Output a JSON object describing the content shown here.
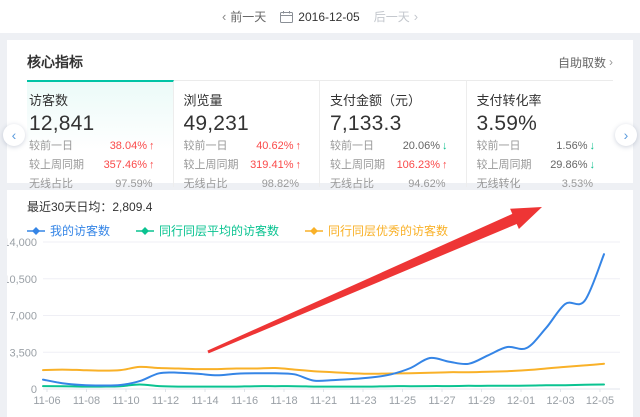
{
  "topbar": {
    "prev_label": "前一天",
    "date": "2016-12-05",
    "next_label": "后一天"
  },
  "core": {
    "title": "核心指标",
    "fetch_link": "自助取数",
    "tabs": [
      {
        "label": "访客数",
        "value": "12,841",
        "rows": [
          {
            "label": "较前一日",
            "value": "38.04%",
            "trend": "up"
          },
          {
            "label": "较上周同期",
            "value": "357.46%",
            "trend": "up"
          },
          {
            "label": "无线占比",
            "value": "97.59%",
            "trend": "none"
          }
        ]
      },
      {
        "label": "浏览量",
        "value": "49,231",
        "rows": [
          {
            "label": "较前一日",
            "value": "40.62%",
            "trend": "up"
          },
          {
            "label": "较上周同期",
            "value": "319.41%",
            "trend": "up"
          },
          {
            "label": "无线占比",
            "value": "98.82%",
            "trend": "none"
          }
        ]
      },
      {
        "label": "支付金额（元）",
        "value": "7,133.3",
        "rows": [
          {
            "label": "较前一日",
            "value": "20.06%",
            "trend": "down"
          },
          {
            "label": "较上周同期",
            "value": "106.23%",
            "trend": "up"
          },
          {
            "label": "无线占比",
            "value": "94.62%",
            "trend": "none"
          }
        ]
      },
      {
        "label": "支付转化率",
        "value": "3.59%",
        "rows": [
          {
            "label": "较前一日",
            "value": "1.56%",
            "trend": "down"
          },
          {
            "label": "较上周同期",
            "value": "29.86%",
            "trend": "down"
          },
          {
            "label": "无线转化",
            "value": "3.53%",
            "trend": "none"
          }
        ]
      }
    ]
  },
  "chart_data": {
    "type": "line",
    "title": "最近30天日均：2,809.4",
    "x": [
      "11-06",
      "11-07",
      "11-08",
      "11-09",
      "11-10",
      "11-11",
      "11-12",
      "11-13",
      "11-14",
      "11-15",
      "11-16",
      "11-17",
      "11-18",
      "11-19",
      "11-20",
      "11-21",
      "11-22",
      "11-23",
      "11-24",
      "11-25",
      "11-26",
      "11-27",
      "11-28",
      "11-29",
      "11-30",
      "12-01",
      "12-02",
      "12-03",
      "12-04",
      "12-05"
    ],
    "x_tick_labels": [
      "11-06",
      "11-08",
      "11-10",
      "11-12",
      "11-14",
      "11-16",
      "11-18",
      "11-21",
      "11-23",
      "11-25",
      "11-27",
      "11-29",
      "12-01",
      "12-03",
      "12-05"
    ],
    "ylim": [
      0,
      14000
    ],
    "y_ticks": [
      {
        "value": 0,
        "label": "0"
      },
      {
        "value": 3500,
        "label": "3,500"
      },
      {
        "value": 7000,
        "label": "7,000"
      },
      {
        "value": 10500,
        "label": "10,500"
      },
      {
        "value": 14000,
        "label": "14,000"
      }
    ],
    "grid": true,
    "legend_position": "top-left",
    "series": [
      {
        "name": "我的访客数",
        "color": "#3585e6",
        "values": [
          900,
          550,
          380,
          330,
          380,
          750,
          1500,
          1550,
          1450,
          1300,
          1450,
          1500,
          1500,
          1400,
          800,
          850,
          950,
          1100,
          1400,
          2000,
          2950,
          2600,
          2400,
          3200,
          4000,
          3900,
          5800,
          8100,
          8400,
          12841
        ]
      },
      {
        "name": "同行同层平均的访客数",
        "color": "#0ac391",
        "values": [
          280,
          270,
          230,
          230,
          270,
          430,
          280,
          230,
          230,
          230,
          230,
          270,
          270,
          270,
          230,
          230,
          230,
          230,
          270,
          270,
          280,
          280,
          300,
          300,
          310,
          320,
          350,
          360,
          400,
          430
        ]
      },
      {
        "name": "同行同层优秀的访客数",
        "color": "#f9b128",
        "values": [
          1800,
          1850,
          1800,
          1750,
          1800,
          2100,
          2000,
          1950,
          1900,
          1900,
          1950,
          1950,
          2000,
          1850,
          1700,
          1600,
          1500,
          1450,
          1480,
          1500,
          1550,
          1600,
          1600,
          1650,
          1700,
          1800,
          1950,
          2100,
          2250,
          2400
        ]
      }
    ]
  },
  "colors": {
    "accent_teal": "#00c3a5",
    "up_red": "#fa4a4a",
    "down_green": "#0abf8c",
    "annotation_red": "#ed2d2d"
  }
}
